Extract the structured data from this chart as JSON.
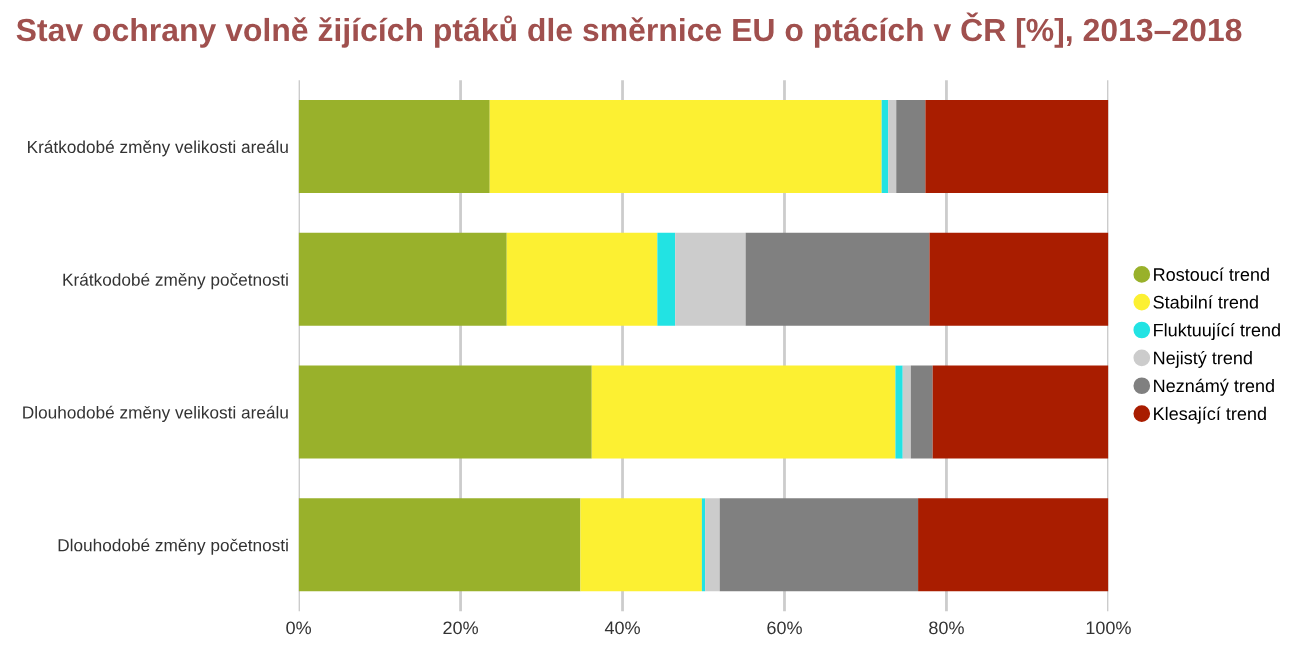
{
  "chart_data": {
    "type": "bar",
    "orientation": "horizontal",
    "stacked": true,
    "title": "Stav ochrany volně žijících ptáků dle směrnice EU o ptácích v ČR [%], 2013–2018",
    "categories": [
      "Krátkodobé změny velikosti areálu",
      "Krátkodobé změny početnosti",
      "Dlouhodobé změny velikosti areálu",
      "Dlouhodobé změny početnosti"
    ],
    "series": [
      {
        "name": "Rostoucí trend",
        "color": "#99b12b",
        "values": [
          23.6,
          25.7,
          36.2,
          34.8
        ]
      },
      {
        "name": "Stabilní trend",
        "color": "#fcf032",
        "values": [
          48.4,
          18.6,
          37.5,
          15.0
        ]
      },
      {
        "name": "Fluktuující trend",
        "color": "#22e3e3",
        "values": [
          0.8,
          2.2,
          0.9,
          0.4
        ]
      },
      {
        "name": "Nejistý trend",
        "color": "#cccccc",
        "values": [
          1.0,
          8.7,
          1.0,
          1.8
        ]
      },
      {
        "name": "Neznámý trend",
        "color": "#808080",
        "values": [
          3.6,
          22.7,
          2.7,
          24.5
        ]
      },
      {
        "name": "Klesající trend",
        "color": "#a91d00",
        "values": [
          22.6,
          22.1,
          21.7,
          23.5
        ]
      }
    ],
    "xlim": [
      0,
      100
    ],
    "xticks": [
      {
        "value": 0,
        "label": "0%"
      },
      {
        "value": 20,
        "label": "20%"
      },
      {
        "value": 40,
        "label": "40%"
      },
      {
        "value": 60,
        "label": "60%"
      },
      {
        "value": 80,
        "label": "80%"
      },
      {
        "value": 100,
        "label": "100%"
      }
    ],
    "grid": "x",
    "legend": "right",
    "marker": "circle"
  }
}
